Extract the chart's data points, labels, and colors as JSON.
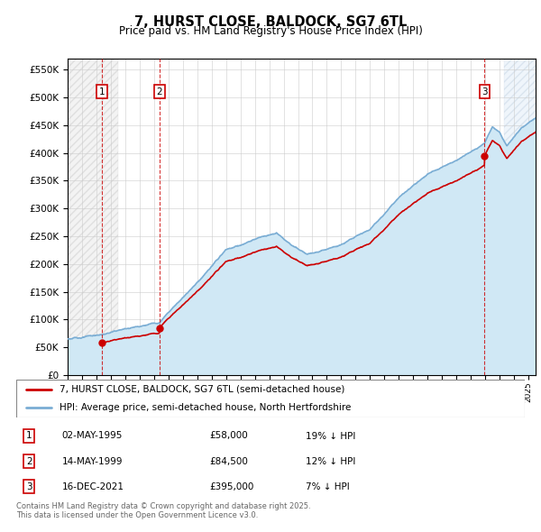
{
  "title": "7, HURST CLOSE, BALDOCK, SG7 6TL",
  "subtitle": "Price paid vs. HM Land Registry's House Price Index (HPI)",
  "legend_line1": "7, HURST CLOSE, BALDOCK, SG7 6TL (semi-detached house)",
  "legend_line2": "HPI: Average price, semi-detached house, North Hertfordshire",
  "footer": "Contains HM Land Registry data © Crown copyright and database right 2025.\nThis data is licensed under the Open Government Licence v3.0.",
  "transactions": [
    {
      "num": 1,
      "date": "02-MAY-1995",
      "price": 58000,
      "hpi_diff": "19% ↓ HPI",
      "year": 1995.37
    },
    {
      "num": 2,
      "date": "14-MAY-1999",
      "price": 84500,
      "hpi_diff": "12% ↓ HPI",
      "year": 1999.37
    },
    {
      "num": 3,
      "date": "16-DEC-2021",
      "price": 395000,
      "hpi_diff": "7% ↓ HPI",
      "year": 2021.96
    }
  ],
  "price_color": "#cc0000",
  "hpi_color": "#7aadd4",
  "hpi_fill_color": "#d0e8f5",
  "ylim": [
    0,
    570000
  ],
  "yticks": [
    0,
    50000,
    100000,
    150000,
    200000,
    250000,
    300000,
    350000,
    400000,
    450000,
    500000,
    550000
  ],
  "xmin": 1993.0,
  "xmax": 2025.5
}
